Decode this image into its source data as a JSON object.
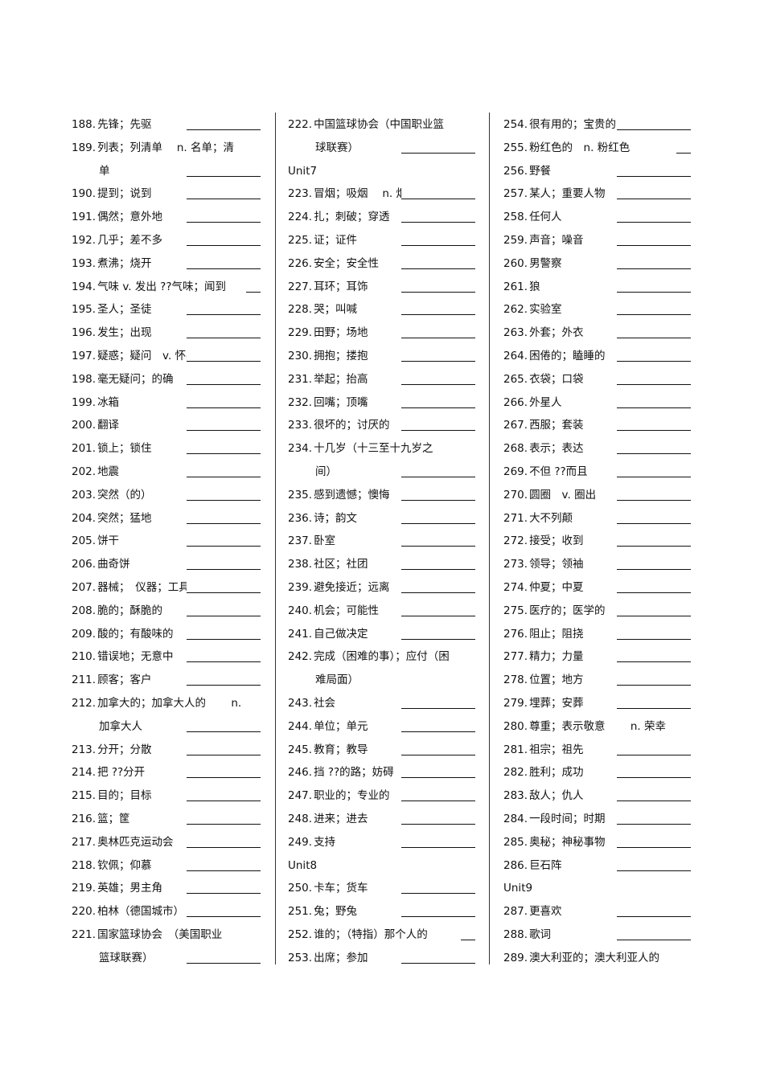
{
  "columns": [
    [
      {
        "num": "188.",
        "text": "先锋；先驱"
      },
      {
        "num": "189.",
        "text": "列表；列清单　 n. 名单；清",
        "text2": "单"
      },
      {
        "num": "190.",
        "text": "提到；说到"
      },
      {
        "num": "191.",
        "text": "偶然；意外地"
      },
      {
        "num": "192.",
        "text": "几乎；差不多"
      },
      {
        "num": "193.",
        "text": "煮沸；烧开"
      },
      {
        "num": "194.",
        "text": "气味 v. 发出 ??气味；闻到"
      },
      {
        "num": "195.",
        "text": "圣人；圣徒"
      },
      {
        "num": "196.",
        "text": "发生；出现"
      },
      {
        "num": "197.",
        "text": "疑惑；疑问　v. 怀疑"
      },
      {
        "num": "198.",
        "text": "毫无疑问；的确"
      },
      {
        "num": "199.",
        "text": "冰箱"
      },
      {
        "num": "200.",
        "text": "翻译"
      },
      {
        "num": "201.",
        "text": "锁上；锁住"
      },
      {
        "num": "202.",
        "text": "地震"
      },
      {
        "num": "203.",
        "text": "突然（的）"
      },
      {
        "num": "204.",
        "text": "突然；猛地"
      },
      {
        "num": "205.",
        "text": "饼干"
      },
      {
        "num": "206.",
        "text": "曲奇饼"
      },
      {
        "num": "207.",
        "text": "器械；　仪器；工具"
      },
      {
        "num": "208.",
        "text": "脆的；酥脆的"
      },
      {
        "num": "209.",
        "text": "酸的；有酸味的"
      },
      {
        "num": "210.",
        "text": "错误地；无意中"
      },
      {
        "num": "211.",
        "text": "顾客；客户"
      },
      {
        "num": "212.",
        "text": "加拿大的；加拿大人的　　 n.",
        "text2": "加拿大人"
      },
      {
        "num": "213.",
        "text": "分开；分散"
      },
      {
        "num": "214.",
        "text": "把 ??分开"
      },
      {
        "num": "215.",
        "text": "目的；目标"
      },
      {
        "num": "216.",
        "text": "篮；筐"
      },
      {
        "num": "217.",
        "text": "奥林匹克运动会"
      },
      {
        "num": "218.",
        "text": "钦佩；仰慕"
      },
      {
        "num": "219.",
        "text": "英雄；男主角"
      },
      {
        "num": "220.",
        "text": "柏林（德国城市）"
      },
      {
        "num": "221.",
        "text": "国家篮球协会　（美国职业",
        "text2": "篮球联赛）"
      }
    ],
    [
      {
        "num": "222.",
        "text": "中国篮球协会（中国职业篮",
        "text2": "球联赛）"
      },
      {
        "heading": "Unit7"
      },
      {
        "num": "223.",
        "text": "冒烟；吸烟　 n. 烟"
      },
      {
        "num": "224.",
        "text": "扎；刺破；穿透"
      },
      {
        "num": "225.",
        "text": "证；证件"
      },
      {
        "num": "226.",
        "text": "安全；安全性"
      },
      {
        "num": "227.",
        "text": "耳环；耳饰"
      },
      {
        "num": "228.",
        "text": "哭；叫喊"
      },
      {
        "num": "229.",
        "text": "田野；场地"
      },
      {
        "num": "230.",
        "text": "拥抱；搂抱"
      },
      {
        "num": "231.",
        "text": "举起；抬高"
      },
      {
        "num": "232.",
        "text": "回嘴；顶嘴"
      },
      {
        "num": "233.",
        "text": "很坏的；讨厌的"
      },
      {
        "num": "234.",
        "text": "十几岁（十三至十九岁之",
        "text2": "间）"
      },
      {
        "num": "235.",
        "text": "感到遗憾；懊悔"
      },
      {
        "num": "236.",
        "text": "诗；韵文"
      },
      {
        "num": "237.",
        "text": "卧室"
      },
      {
        "num": "238.",
        "text": "社区；社团"
      },
      {
        "num": "239.",
        "text": "避免接近；远离"
      },
      {
        "num": "240.",
        "text": "机会；可能性"
      },
      {
        "num": "241.",
        "text": "自己做决定"
      },
      {
        "num": "242.",
        "text": "完成（困难的事）；应付（困",
        "text2": "难局面）"
      },
      {
        "num": "243.",
        "text": "社会"
      },
      {
        "num": "244.",
        "text": "单位；单元"
      },
      {
        "num": "245.",
        "text": "教育；教导"
      },
      {
        "num": "246.",
        "text": "挡 ??的路；妨碍"
      },
      {
        "num": "247.",
        "text": "职业的；专业的"
      },
      {
        "num": "248.",
        "text": "进来；进去"
      },
      {
        "num": "249.",
        "text": "支持"
      },
      {
        "heading": "Unit8"
      },
      {
        "num": "250.",
        "text": "卡车；货车"
      },
      {
        "num": "251.",
        "text": "兔；野兔"
      },
      {
        "num": "252.",
        "text": "谁的；（特指）那个人的"
      },
      {
        "num": "253.",
        "text": "出席；参加"
      }
    ],
    [
      {
        "num": "254.",
        "text": "很有用的；宝贵的"
      },
      {
        "num": "255.",
        "text": "粉红色的　n. 粉红色"
      },
      {
        "num": "256.",
        "text": "野餐"
      },
      {
        "num": "257.",
        "text": "某人；重要人物"
      },
      {
        "num": "258.",
        "text": "任何人"
      },
      {
        "num": "259.",
        "text": "声音；噪音"
      },
      {
        "num": "260.",
        "text": "男警察"
      },
      {
        "num": "261.",
        "text": "狼"
      },
      {
        "num": "262.",
        "text": "实验室"
      },
      {
        "num": "263.",
        "text": "外套；外衣"
      },
      {
        "num": "264.",
        "text": "困倦的；瞌睡的"
      },
      {
        "num": "265.",
        "text": "衣袋；口袋"
      },
      {
        "num": "266.",
        "text": "外星人"
      },
      {
        "num": "267.",
        "text": "西服；套装"
      },
      {
        "num": "268.",
        "text": "表示；表达"
      },
      {
        "num": "269.",
        "text": "不但 ??而且"
      },
      {
        "num": "270.",
        "text": "圆圈　v. 圈出"
      },
      {
        "num": "271.",
        "text": "大不列颠"
      },
      {
        "num": "272.",
        "text": "接受；收到"
      },
      {
        "num": "273.",
        "text": "领导；领袖"
      },
      {
        "num": "274.",
        "text": "仲夏；中夏"
      },
      {
        "num": "275.",
        "text": "医疗的；医学的"
      },
      {
        "num": "276.",
        "text": "阻止；阻挠"
      },
      {
        "num": "277.",
        "text": "精力；力量"
      },
      {
        "num": "278.",
        "text": "位置；地方"
      },
      {
        "num": "279.",
        "text": "埋葬；安葬"
      },
      {
        "num": "280.",
        "text": "尊重；表示敬意　　 n. 荣幸"
      },
      {
        "num": "281.",
        "text": "祖宗；祖先"
      },
      {
        "num": "282.",
        "text": "胜利；成功"
      },
      {
        "num": "283.",
        "text": "敌人；仇人"
      },
      {
        "num": "284.",
        "text": "一段时间；时期"
      },
      {
        "num": "285.",
        "text": "奥秘；神秘事物"
      },
      {
        "num": "286.",
        "text": "巨石阵"
      },
      {
        "heading": "Unit9"
      },
      {
        "num": "287.",
        "text": "更喜欢"
      },
      {
        "num": "288.",
        "text": "歌词"
      },
      {
        "num": "289.",
        "text": "澳大利亚的；澳大利亚人的"
      }
    ]
  ]
}
